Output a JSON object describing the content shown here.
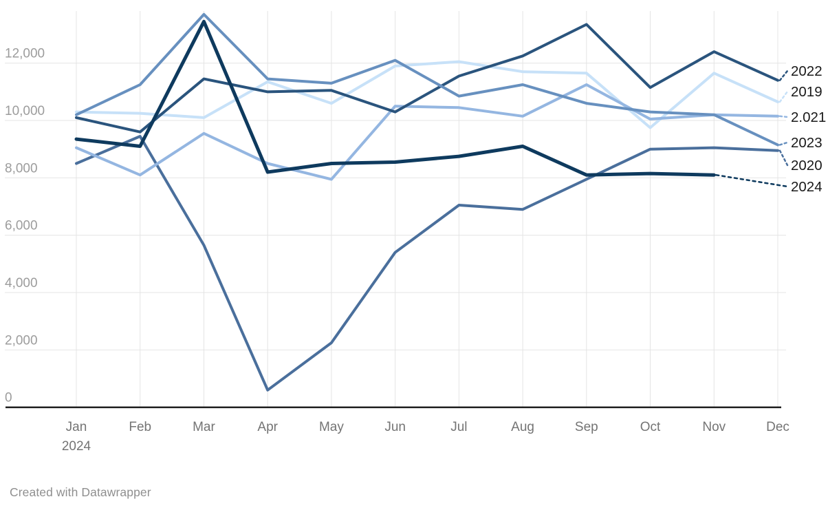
{
  "chart_data": {
    "type": "line",
    "title": "",
    "xlabel": "",
    "ylabel": "",
    "x_categories": [
      "Jan",
      "Feb",
      "Mar",
      "Apr",
      "May",
      "Jun",
      "Jul",
      "Aug",
      "Sep",
      "Oct",
      "Nov",
      "Dec"
    ],
    "x_axis_year": "2024",
    "y_ticks": [
      0,
      2000,
      4000,
      6000,
      8000,
      10000,
      12000
    ],
    "y_tick_labels": [
      "0",
      "2,000",
      "4,000",
      "6,000",
      "8,000",
      "10,000",
      "12,000"
    ],
    "ylim": [
      0,
      13860
    ],
    "grid": true,
    "legend_position": "right-edge-direct-labels",
    "series": [
      {
        "name": "2019",
        "label": "2019",
        "color": "#c7e1f8",
        "label_y": 133,
        "values": [
          10300,
          10250,
          10100,
          11350,
          10600,
          11900,
          12050,
          11700,
          11650,
          9750,
          11650,
          10650
        ]
      },
      {
        "name": "2020",
        "label": "2020",
        "color": "#4a6f9c",
        "label_y": 240,
        "values": [
          8500,
          9450,
          5650,
          600,
          2250,
          5400,
          7050,
          6900,
          7950,
          9000,
          9050,
          8950
        ]
      },
      {
        "name": "2021",
        "label": "2.021",
        "color": "#94b6e1",
        "label_y": 170,
        "values": [
          9050,
          8100,
          9550,
          8500,
          7950,
          10500,
          10450,
          10150,
          11250,
          10050,
          10200,
          10150
        ]
      },
      {
        "name": "2022",
        "label": "2022",
        "color": "#2a547d",
        "label_y": 103,
        "values": [
          10100,
          9600,
          11450,
          11000,
          11050,
          10300,
          11550,
          12250,
          13350,
          11150,
          12400,
          11400
        ]
      },
      {
        "name": "2023",
        "label": "2023",
        "color": "#6790bf",
        "label_y": 207,
        "values": [
          10200,
          11250,
          13700,
          11450,
          11300,
          12100,
          10850,
          11250,
          10600,
          10300,
          10200,
          9150
        ]
      },
      {
        "name": "2024",
        "label": "2024",
        "color": "#0e3a5e",
        "label_y": 271,
        "thick": true,
        "dotted_tail": true,
        "values": [
          9350,
          9100,
          13450,
          8200,
          8500,
          8550,
          8750,
          9100,
          8100,
          8150,
          8100,
          null
        ]
      }
    ],
    "colors": {
      "gridline": "#e4e4e4",
      "axis_line": "#212121",
      "y_tick_text": "#9c9c9c",
      "x_tick_text": "#747474",
      "series_label_text": "#1a1a1a"
    }
  },
  "footer": {
    "attribution": "Created with Datawrapper"
  }
}
